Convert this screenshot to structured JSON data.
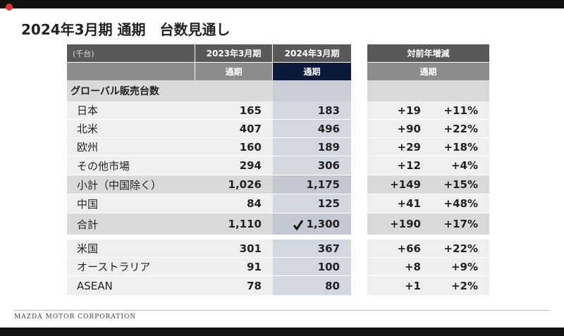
{
  "title": "2024年3月期 通期　台数見通し",
  "unit": "(千台)",
  "columns": [
    "2023年3月期",
    "2024年3月期"
  ],
  "yoy_header": "対前年増減",
  "period": "通期",
  "section": "グローバル販売台数",
  "rows": [
    [
      "日本",
      "165",
      "183",
      "+19",
      "+11%"
    ],
    [
      "北米",
      "407",
      "496",
      "+90",
      "+22%"
    ],
    [
      "欧州",
      "160",
      "189",
      "+29",
      "+18%"
    ],
    [
      "その他市場",
      "294",
      "306",
      "+12",
      "+4%"
    ],
    [
      "小計（中国除く）",
      "1,026",
      "1,175",
      "+149",
      "+15%"
    ],
    [
      "中国",
      "84",
      "125",
      "+41",
      "+48%"
    ],
    [
      "合計",
      "1,110",
      "1,300",
      "+190",
      "+17%"
    ]
  ],
  "sub_rows": [
    [
      "米国",
      "301",
      "367",
      "+66",
      "+22%"
    ],
    [
      "オーストラリア",
      "91",
      "100",
      "+8",
      "+9%"
    ],
    [
      "ASEAN",
      "78",
      "80",
      "+1",
      "+2%"
    ]
  ],
  "footer": "MAZDA MOTOR CORPORATION"
}
